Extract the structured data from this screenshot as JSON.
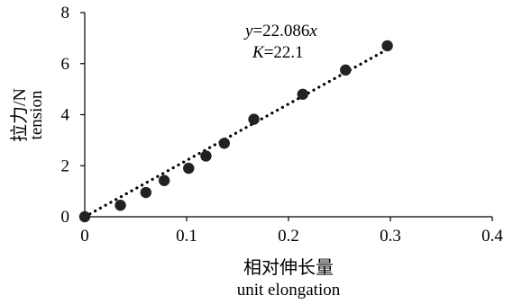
{
  "chart_data": {
    "type": "scatter",
    "title": "",
    "xlabel": "相对伸长量",
    "xlabel_en": "unit elongation",
    "ylabel": "拉力/N",
    "ylabel_en": "tension",
    "xlim": [
      0,
      0.4
    ],
    "ylim": [
      0,
      8
    ],
    "xticks": [
      0,
      0.1,
      0.2,
      0.3,
      0.4
    ],
    "xtick_labels": [
      "0",
      "0.1",
      "0.2",
      "0.3",
      "0.4"
    ],
    "yticks": [
      0,
      2,
      4,
      6,
      8
    ],
    "ytick_labels": [
      "0",
      "2",
      "4",
      "6",
      "8"
    ],
    "grid": false,
    "legend": "none",
    "series": [
      {
        "marker": "circle",
        "color": "#222222",
        "x": [
          0,
          0.035,
          0.06,
          0.078,
          0.102,
          0.119,
          0.137,
          0.166,
          0.214,
          0.256,
          0.297
        ],
        "y": [
          0,
          0.45,
          0.95,
          1.42,
          1.9,
          2.38,
          2.88,
          3.82,
          4.8,
          5.75,
          6.7
        ]
      }
    ],
    "trendline": {
      "type": "linear",
      "style": "dotted",
      "slope": 22.086,
      "x_range": [
        0,
        0.3
      ]
    },
    "annotations": {
      "equation_lhs": "y",
      "equation_mid": "=22.086",
      "equation_rhs": "x",
      "k_lhs": "K",
      "k_rhs": "=22.1"
    }
  }
}
